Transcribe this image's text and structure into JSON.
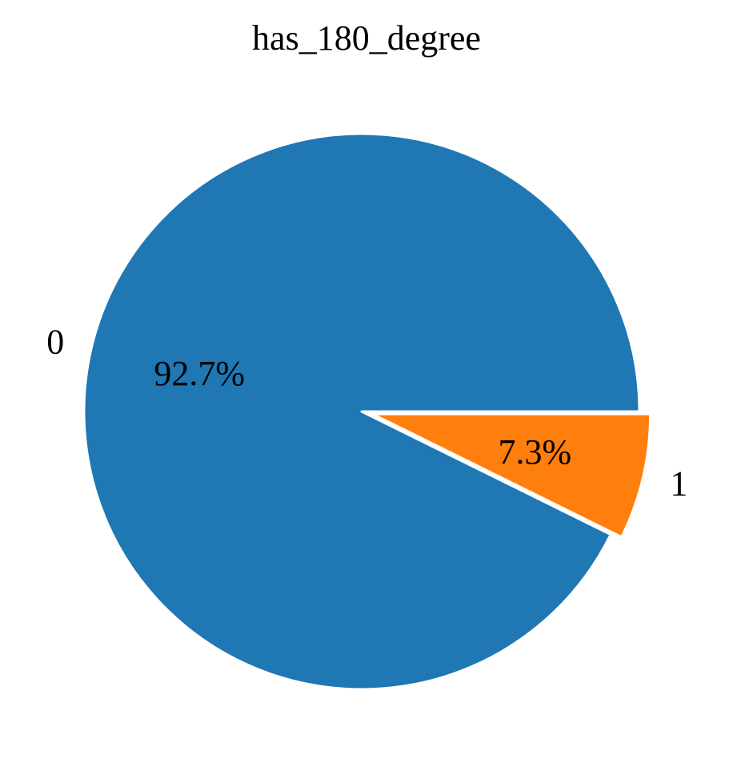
{
  "chart_data": {
    "type": "pie",
    "title": "has_180_degree",
    "slices": [
      {
        "label": "0",
        "value": 92.7,
        "pct_label": "92.7%",
        "color": "#1f77b4",
        "explode": false
      },
      {
        "label": "1",
        "value": 7.3,
        "pct_label": "7.3%",
        "color": "#ff7f0e",
        "explode": true
      }
    ],
    "start_angle_deg": 0,
    "direction": "counterclockwise",
    "edge_color": "#ffffff"
  }
}
